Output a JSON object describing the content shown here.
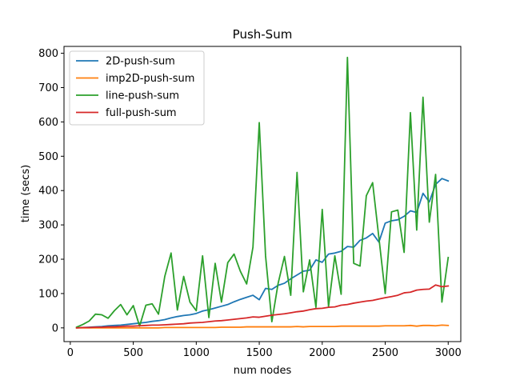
{
  "chart_data": {
    "type": "line",
    "title": "Push-Sum",
    "xlabel": "num nodes",
    "ylabel": "time (secs)",
    "xlim": [
      -50,
      3100
    ],
    "ylim": [
      -40,
      820
    ],
    "xticks": [
      0,
      500,
      1000,
      1500,
      2000,
      2500,
      3000
    ],
    "yticks": [
      0,
      100,
      200,
      300,
      400,
      500,
      600,
      700,
      800
    ],
    "grid": false,
    "legend_position": "top-left",
    "x": [
      50,
      100,
      150,
      200,
      250,
      300,
      350,
      400,
      450,
      500,
      550,
      600,
      650,
      700,
      750,
      800,
      850,
      900,
      950,
      1000,
      1050,
      1100,
      1150,
      1200,
      1250,
      1300,
      1350,
      1400,
      1450,
      1500,
      1550,
      1600,
      1650,
      1700,
      1750,
      1800,
      1850,
      1900,
      1950,
      2000,
      2050,
      2100,
      2150,
      2200,
      2250,
      2300,
      2350,
      2400,
      2450,
      2500,
      2550,
      2600,
      2650,
      2700,
      2750,
      2800,
      2850,
      2900,
      2950,
      3000
    ],
    "series": [
      {
        "name": "2D-push-sum",
        "color": "#1f77b4",
        "values": [
          0,
          1,
          2,
          3,
          4,
          6,
          7,
          8,
          10,
          12,
          14,
          16,
          19,
          21,
          24,
          29,
          33,
          36,
          38,
          42,
          49,
          53,
          58,
          63,
          68,
          76,
          83,
          89,
          95,
          82,
          115,
          112,
          124,
          130,
          143,
          154,
          165,
          168,
          198,
          191,
          215,
          218,
          223,
          237,
          235,
          255,
          262,
          275,
          250,
          305,
          312,
          315,
          325,
          341,
          336,
          392,
          367,
          418,
          435,
          428
        ]
      },
      {
        "name": "imp2D-push-sum",
        "color": "#ff7f0e",
        "values": [
          0,
          0,
          0,
          0,
          0,
          0,
          0,
          0,
          0,
          0,
          0,
          0,
          0,
          0,
          1,
          1,
          1,
          1,
          1,
          1,
          1,
          1,
          1,
          2,
          2,
          2,
          2,
          3,
          3,
          3,
          3,
          3,
          3,
          3,
          3,
          4,
          3,
          4,
          4,
          4,
          4,
          4,
          5,
          5,
          5,
          5,
          5,
          5,
          5,
          6,
          6,
          6,
          6,
          7,
          5,
          7,
          7,
          6,
          8,
          7
        ]
      },
      {
        "name": "line-push-sum",
        "color": "#2ca02c",
        "values": [
          2,
          10,
          20,
          40,
          38,
          28,
          50,
          68,
          38,
          65,
          5,
          66,
          70,
          40,
          150,
          218,
          52,
          150,
          75,
          50,
          210,
          30,
          188,
          75,
          190,
          215,
          165,
          128,
          235,
          598,
          210,
          18,
          130,
          208,
          95,
          453,
          105,
          198,
          60,
          345,
          62,
          210,
          98,
          788,
          188,
          180,
          385,
          423,
          262,
          100,
          338,
          343,
          220,
          627,
          285,
          672,
          308,
          447,
          75,
          205
        ]
      },
      {
        "name": "full-push-sum",
        "color": "#d62728",
        "values": [
          0,
          1,
          1,
          2,
          2,
          3,
          3,
          4,
          5,
          5,
          6,
          7,
          8,
          8,
          9,
          10,
          11,
          12,
          14,
          15,
          16,
          18,
          20,
          21,
          23,
          25,
          27,
          29,
          32,
          31,
          34,
          37,
          39,
          41,
          44,
          47,
          49,
          53,
          56,
          57,
          60,
          61,
          66,
          68,
          72,
          75,
          78,
          80,
          84,
          88,
          91,
          95,
          102,
          104,
          110,
          112,
          113,
          125,
          120,
          122
        ]
      }
    ]
  }
}
